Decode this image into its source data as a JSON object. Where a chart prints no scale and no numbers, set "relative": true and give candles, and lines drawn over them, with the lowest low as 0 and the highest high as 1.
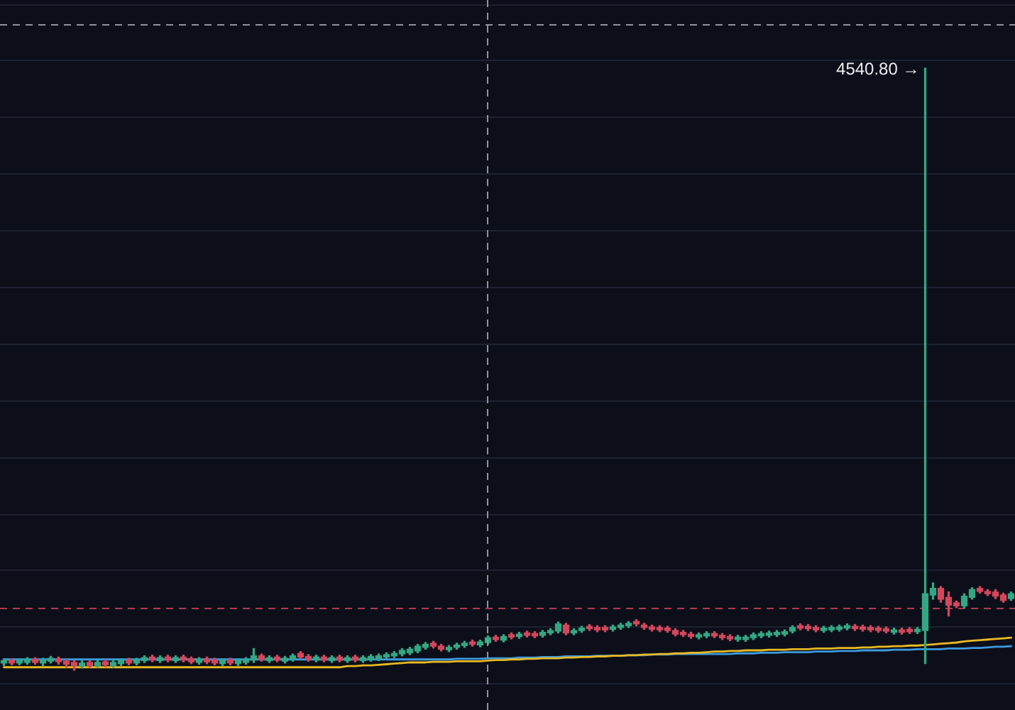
{
  "chart_data": {
    "type": "candlestick",
    "relative": true,
    "grid": "y",
    "marker": "none",
    "categories": [
      null,
      null,
      null,
      null,
      null,
      null,
      null,
      null,
      null,
      null,
      null,
      null,
      null,
      null,
      null,
      null,
      null,
      null,
      null,
      null,
      null,
      null,
      null,
      null,
      null,
      null,
      null,
      null,
      null,
      null,
      null,
      null,
      null,
      null,
      null,
      null,
      null,
      null,
      null,
      null,
      null,
      null,
      null,
      null,
      null,
      null,
      null,
      null,
      null,
      null,
      null,
      null,
      null,
      null,
      null,
      null,
      null,
      null,
      null,
      null,
      null,
      null,
      null,
      null,
      null,
      null,
      null,
      null,
      null,
      null,
      null,
      null,
      null,
      null,
      null,
      null,
      null,
      null,
      null,
      null,
      null,
      null,
      null,
      null,
      null,
      null,
      null,
      null,
      null,
      null,
      null,
      null,
      null,
      null,
      null,
      null,
      null,
      null,
      null,
      null,
      null,
      null,
      null,
      null,
      null,
      null,
      null,
      null,
      null,
      null,
      null,
      null,
      null,
      null,
      null,
      null,
      null,
      null,
      null,
      null,
      null,
      null,
      null,
      null,
      null,
      null,
      null,
      null,
      null,
      null
    ],
    "ohlc": [
      [
        0.012,
        0.019,
        0.008,
        0.016
      ],
      [
        0.016,
        0.019,
        0.009,
        0.012
      ],
      [
        0.012,
        0.019,
        0.009,
        0.016
      ],
      [
        0.013,
        0.021,
        0.01,
        0.018
      ],
      [
        0.018,
        0.021,
        0.01,
        0.013
      ],
      [
        0.012,
        0.02,
        0.008,
        0.017
      ],
      [
        0.015,
        0.023,
        0.012,
        0.02
      ],
      [
        0.019,
        0.022,
        0.01,
        0.014
      ],
      [
        0.015,
        0.018,
        0.005,
        0.01
      ],
      [
        0.013,
        0.016,
        0.0,
        0.008
      ],
      [
        0.007,
        0.016,
        0.004,
        0.012
      ],
      [
        0.013,
        0.016,
        0.005,
        0.008
      ],
      [
        0.008,
        0.016,
        0.005,
        0.013
      ],
      [
        0.014,
        0.017,
        0.006,
        0.009
      ],
      [
        0.008,
        0.017,
        0.005,
        0.013
      ],
      [
        0.011,
        0.019,
        0.008,
        0.016
      ],
      [
        0.017,
        0.02,
        0.009,
        0.012
      ],
      [
        0.012,
        0.02,
        0.009,
        0.017
      ],
      [
        0.016,
        0.024,
        0.013,
        0.021
      ],
      [
        0.022,
        0.025,
        0.014,
        0.017
      ],
      [
        0.016,
        0.024,
        0.013,
        0.021
      ],
      [
        0.022,
        0.025,
        0.014,
        0.017
      ],
      [
        0.016,
        0.024,
        0.013,
        0.021
      ],
      [
        0.022,
        0.025,
        0.014,
        0.017
      ],
      [
        0.019,
        0.022,
        0.011,
        0.014
      ],
      [
        0.013,
        0.021,
        0.01,
        0.018
      ],
      [
        0.019,
        0.022,
        0.011,
        0.014
      ],
      [
        0.017,
        0.02,
        0.009,
        0.012
      ],
      [
        0.011,
        0.019,
        0.008,
        0.016
      ],
      [
        0.017,
        0.02,
        0.009,
        0.012
      ],
      [
        0.011,
        0.019,
        0.008,
        0.016
      ],
      [
        0.013,
        0.021,
        0.01,
        0.018
      ],
      [
        0.017,
        0.036,
        0.013,
        0.024
      ],
      [
        0.024,
        0.027,
        0.015,
        0.018
      ],
      [
        0.016,
        0.024,
        0.013,
        0.021
      ],
      [
        0.022,
        0.025,
        0.014,
        0.017
      ],
      [
        0.015,
        0.023,
        0.012,
        0.02
      ],
      [
        0.019,
        0.027,
        0.015,
        0.024
      ],
      [
        0.028,
        0.031,
        0.019,
        0.022
      ],
      [
        0.023,
        0.026,
        0.015,
        0.018
      ],
      [
        0.017,
        0.025,
        0.014,
        0.022
      ],
      [
        0.022,
        0.025,
        0.014,
        0.017
      ],
      [
        0.016,
        0.024,
        0.013,
        0.021
      ],
      [
        0.022,
        0.025,
        0.014,
        0.017
      ],
      [
        0.016,
        0.024,
        0.013,
        0.021
      ],
      [
        0.022,
        0.025,
        0.014,
        0.017
      ],
      [
        0.016,
        0.024,
        0.013,
        0.021
      ],
      [
        0.018,
        0.026,
        0.015,
        0.023
      ],
      [
        0.019,
        0.027,
        0.016,
        0.024
      ],
      [
        0.022,
        0.029,
        0.019,
        0.026
      ],
      [
        0.024,
        0.031,
        0.021,
        0.028
      ],
      [
        0.027,
        0.036,
        0.024,
        0.033
      ],
      [
        0.029,
        0.038,
        0.026,
        0.035
      ],
      [
        0.032,
        0.043,
        0.029,
        0.04
      ],
      [
        0.038,
        0.046,
        0.035,
        0.043
      ],
      [
        0.045,
        0.048,
        0.037,
        0.04
      ],
      [
        0.04,
        0.043,
        0.032,
        0.035
      ],
      [
        0.034,
        0.041,
        0.031,
        0.038
      ],
      [
        0.038,
        0.045,
        0.035,
        0.042
      ],
      [
        0.041,
        0.048,
        0.038,
        0.045
      ],
      [
        0.047,
        0.05,
        0.04,
        0.043
      ],
      [
        0.042,
        0.05,
        0.039,
        0.047
      ],
      [
        0.046,
        0.057,
        0.043,
        0.054
      ],
      [
        0.055,
        0.058,
        0.048,
        0.051
      ],
      [
        0.05,
        0.059,
        0.047,
        0.056
      ],
      [
        0.059,
        0.062,
        0.052,
        0.055
      ],
      [
        0.056,
        0.063,
        0.053,
        0.06
      ],
      [
        0.062,
        0.065,
        0.055,
        0.058
      ],
      [
        0.061,
        0.064,
        0.054,
        0.057
      ],
      [
        0.058,
        0.066,
        0.055,
        0.063
      ],
      [
        0.062,
        0.069,
        0.059,
        0.066
      ],
      [
        0.065,
        0.08,
        0.062,
        0.077
      ],
      [
        0.075,
        0.078,
        0.059,
        0.062
      ],
      [
        0.062,
        0.069,
        0.059,
        0.066
      ],
      [
        0.066,
        0.073,
        0.063,
        0.07
      ],
      [
        0.073,
        0.076,
        0.066,
        0.069
      ],
      [
        0.071,
        0.074,
        0.064,
        0.067
      ],
      [
        0.071,
        0.074,
        0.064,
        0.067
      ],
      [
        0.068,
        0.075,
        0.065,
        0.072
      ],
      [
        0.071,
        0.078,
        0.068,
        0.075
      ],
      [
        0.074,
        0.081,
        0.071,
        0.078
      ],
      [
        0.081,
        0.084,
        0.074,
        0.077
      ],
      [
        0.075,
        0.078,
        0.068,
        0.071
      ],
      [
        0.072,
        0.075,
        0.065,
        0.068
      ],
      [
        0.071,
        0.074,
        0.064,
        0.067
      ],
      [
        0.07,
        0.073,
        0.063,
        0.066
      ],
      [
        0.066,
        0.069,
        0.057,
        0.06
      ],
      [
        0.063,
        0.066,
        0.056,
        0.059
      ],
      [
        0.06,
        0.063,
        0.053,
        0.056
      ],
      [
        0.055,
        0.062,
        0.052,
        0.059
      ],
      [
        0.057,
        0.064,
        0.054,
        0.061
      ],
      [
        0.061,
        0.064,
        0.054,
        0.057
      ],
      [
        0.058,
        0.061,
        0.051,
        0.054
      ],
      [
        0.056,
        0.059,
        0.049,
        0.052
      ],
      [
        0.051,
        0.058,
        0.048,
        0.055
      ],
      [
        0.051,
        0.058,
        0.048,
        0.055
      ],
      [
        0.054,
        0.062,
        0.051,
        0.059
      ],
      [
        0.057,
        0.064,
        0.054,
        0.061
      ],
      [
        0.058,
        0.065,
        0.055,
        0.062
      ],
      [
        0.059,
        0.066,
        0.056,
        0.063
      ],
      [
        0.06,
        0.067,
        0.057,
        0.064
      ],
      [
        0.065,
        0.074,
        0.062,
        0.071
      ],
      [
        0.074,
        0.077,
        0.067,
        0.07
      ],
      [
        0.073,
        0.076,
        0.066,
        0.069
      ],
      [
        0.071,
        0.074,
        0.064,
        0.067
      ],
      [
        0.066,
        0.073,
        0.063,
        0.07
      ],
      [
        0.067,
        0.074,
        0.064,
        0.071
      ],
      [
        0.068,
        0.075,
        0.065,
        0.072
      ],
      [
        0.07,
        0.077,
        0.067,
        0.074
      ],
      [
        0.073,
        0.076,
        0.066,
        0.069
      ],
      [
        0.072,
        0.075,
        0.065,
        0.068
      ],
      [
        0.071,
        0.074,
        0.064,
        0.067
      ],
      [
        0.07,
        0.073,
        0.063,
        0.066
      ],
      [
        0.069,
        0.072,
        0.062,
        0.065
      ],
      [
        0.063,
        0.07,
        0.06,
        0.067
      ],
      [
        0.067,
        0.07,
        0.06,
        0.063
      ],
      [
        0.068,
        0.071,
        0.061,
        0.064
      ],
      [
        0.064,
        0.071,
        0.061,
        0.068
      ],
      [
        0.066,
        1,
        0.011,
        0.127
      ],
      [
        0.125,
        0.145,
        0.118,
        0.136
      ],
      [
        0.136,
        0.139,
        0.113,
        0.118
      ],
      [
        0.121,
        0.13,
        0.09,
        0.108
      ],
      [
        0.112,
        0.115,
        0.104,
        0.107
      ],
      [
        0.107,
        0.127,
        0.104,
        0.123
      ],
      [
        0.121,
        0.137,
        0.118,
        0.134
      ],
      [
        0.136,
        0.139,
        0.128,
        0.131
      ],
      [
        0.131,
        0.134,
        0.124,
        0.127
      ],
      [
        0.13,
        0.134,
        0.119,
        0.123
      ],
      [
        0.125,
        0.128,
        0.113,
        0.116
      ],
      [
        0.119,
        0.13,
        0.116,
        0.127
      ]
    ],
    "colors": [
      "#35a683",
      "#d2475b",
      "#35a683",
      "#35a683",
      "#d2475b",
      "#35a683",
      "#35a683",
      "#d2475b",
      "#d2475b",
      "#d2475b",
      "#35a683",
      "#d2475b",
      "#35a683",
      "#d2475b",
      "#35a683",
      "#35a683",
      "#d2475b",
      "#35a683",
      "#35a683",
      "#d2475b",
      "#35a683",
      "#d2475b",
      "#35a683",
      "#d2475b",
      "#d2475b",
      "#35a683",
      "#d2475b",
      "#d2475b",
      "#35a683",
      "#d2475b",
      "#35a683",
      "#35a683",
      "#35a683",
      "#d2475b",
      "#35a683",
      "#d2475b",
      "#35a683",
      "#35a683",
      "#d2475b",
      "#d2475b",
      "#35a683",
      "#d2475b",
      "#35a683",
      "#d2475b",
      "#35a683",
      "#d2475b",
      "#35a683",
      "#35a683",
      "#35a683",
      "#35a683",
      "#35a683",
      "#35a683",
      "#35a683",
      "#35a683",
      "#35a683",
      "#d2475b",
      "#d2475b",
      "#35a683",
      "#35a683",
      "#35a683",
      "#d2475b",
      "#35a683",
      "#35a683",
      "#d2475b",
      "#35a683",
      "#d2475b",
      "#35a683",
      "#d2475b",
      "#d2475b",
      "#35a683",
      "#35a683",
      "#35a683",
      "#d2475b",
      "#35a683",
      "#35a683",
      "#d2475b",
      "#d2475b",
      "#d2475b",
      "#35a683",
      "#35a683",
      "#35a683",
      "#d2475b",
      "#d2475b",
      "#d2475b",
      "#d2475b",
      "#d2475b",
      "#d2475b",
      "#d2475b",
      "#d2475b",
      "#35a683",
      "#35a683",
      "#d2475b",
      "#d2475b",
      "#d2475b",
      "#35a683",
      "#35a683",
      "#35a683",
      "#35a683",
      "#35a683",
      "#35a683",
      "#35a683",
      "#35a683",
      "#d2475b",
      "#d2475b",
      "#d2475b",
      "#35a683",
      "#35a683",
      "#35a683",
      "#35a683",
      "#d2475b",
      "#d2475b",
      "#d2475b",
      "#d2475b",
      "#d2475b",
      "#35a683",
      "#d2475b",
      "#d2475b",
      "#35a683",
      "#35a683",
      "#35a683",
      "#d2475b",
      "#d2475b",
      "#d2475b",
      "#35a683",
      "#35a683",
      "#d2475b",
      "#d2475b",
      "#d2475b",
      "#d2475b",
      "#35a683"
    ],
    "series": [
      {
        "type": "line",
        "color": "#e8b923",
        "values": [
          0.005,
          0.005,
          0.005,
          0.005,
          0.005,
          0.005,
          0.005,
          0.005,
          0.005,
          0.005,
          0.005,
          0.005,
          0.005,
          0.005,
          0.005,
          0.005,
          0.005,
          0.005,
          0.005,
          0.005,
          0.005,
          0.005,
          0.005,
          0.005,
          0.005,
          0.005,
          0.005,
          0.005,
          0.005,
          0.005,
          0.005,
          0.005,
          0.005,
          0.005,
          0.005,
          0.005,
          0.005,
          0.005,
          0.005,
          0.005,
          0.005,
          0.005,
          0.005,
          0.005,
          0.007,
          0.007,
          0.008,
          0.008,
          0.009,
          0.01,
          0.011,
          0.012,
          0.013,
          0.013,
          0.013,
          0.014,
          0.014,
          0.014,
          0.015,
          0.015,
          0.015,
          0.015,
          0.016,
          0.017,
          0.017,
          0.018,
          0.018,
          0.019,
          0.019,
          0.02,
          0.02,
          0.02,
          0.021,
          0.021,
          0.022,
          0.022,
          0.023,
          0.023,
          0.024,
          0.024,
          0.025,
          0.025,
          0.026,
          0.026,
          0.027,
          0.027,
          0.028,
          0.028,
          0.029,
          0.029,
          0.03,
          0.031,
          0.031,
          0.032,
          0.032,
          0.033,
          0.033,
          0.033,
          0.034,
          0.034,
          0.034,
          0.035,
          0.035,
          0.035,
          0.036,
          0.036,
          0.036,
          0.037,
          0.037,
          0.037,
          0.038,
          0.038,
          0.039,
          0.039,
          0.04,
          0.04,
          0.041,
          0.041,
          0.042,
          0.043,
          0.044,
          0.045,
          0.046,
          0.048,
          0.049,
          0.05,
          0.051,
          0.052,
          0.053,
          0.054
        ]
      },
      {
        "type": "line",
        "color": "#3d9ae0",
        "values": [
          0.018,
          0.018,
          0.018,
          0.018,
          0.018,
          0.018,
          0.018,
          0.018,
          0.018,
          0.018,
          0.018,
          0.018,
          0.018,
          0.018,
          0.018,
          0.018,
          0.018,
          0.018,
          0.018,
          0.018,
          0.018,
          0.018,
          0.018,
          0.018,
          0.018,
          0.018,
          0.018,
          0.018,
          0.018,
          0.018,
          0.018,
          0.018,
          0.018,
          0.018,
          0.018,
          0.018,
          0.018,
          0.018,
          0.018,
          0.018,
          0.018,
          0.018,
          0.018,
          0.018,
          0.018,
          0.018,
          0.018,
          0.018,
          0.018,
          0.018,
          0.018,
          0.018,
          0.018,
          0.018,
          0.018,
          0.018,
          0.018,
          0.018,
          0.019,
          0.019,
          0.019,
          0.019,
          0.02,
          0.02,
          0.02,
          0.02,
          0.021,
          0.021,
          0.021,
          0.022,
          0.022,
          0.022,
          0.023,
          0.023,
          0.023,
          0.023,
          0.024,
          0.024,
          0.024,
          0.024,
          0.025,
          0.025,
          0.025,
          0.026,
          0.026,
          0.026,
          0.027,
          0.027,
          0.027,
          0.027,
          0.027,
          0.027,
          0.027,
          0.027,
          0.028,
          0.028,
          0.028,
          0.029,
          0.029,
          0.029,
          0.03,
          0.03,
          0.03,
          0.03,
          0.031,
          0.031,
          0.031,
          0.032,
          0.032,
          0.032,
          0.033,
          0.033,
          0.033,
          0.033,
          0.034,
          0.034,
          0.034,
          0.035,
          0.035,
          0.035,
          0.035,
          0.036,
          0.036,
          0.036,
          0.037,
          0.037,
          0.038,
          0.039,
          0.039,
          0.04
        ]
      }
    ],
    "ref_lines": [
      {
        "axis": "y",
        "value": 1.073,
        "color": "#8e939c",
        "line_style": "dashed"
      },
      {
        "axis": "y",
        "value": 0.104,
        "color": "#b13a4f",
        "line_style": "dashed"
      }
    ],
    "annotations": [
      "4540.80 →"
    ]
  }
}
